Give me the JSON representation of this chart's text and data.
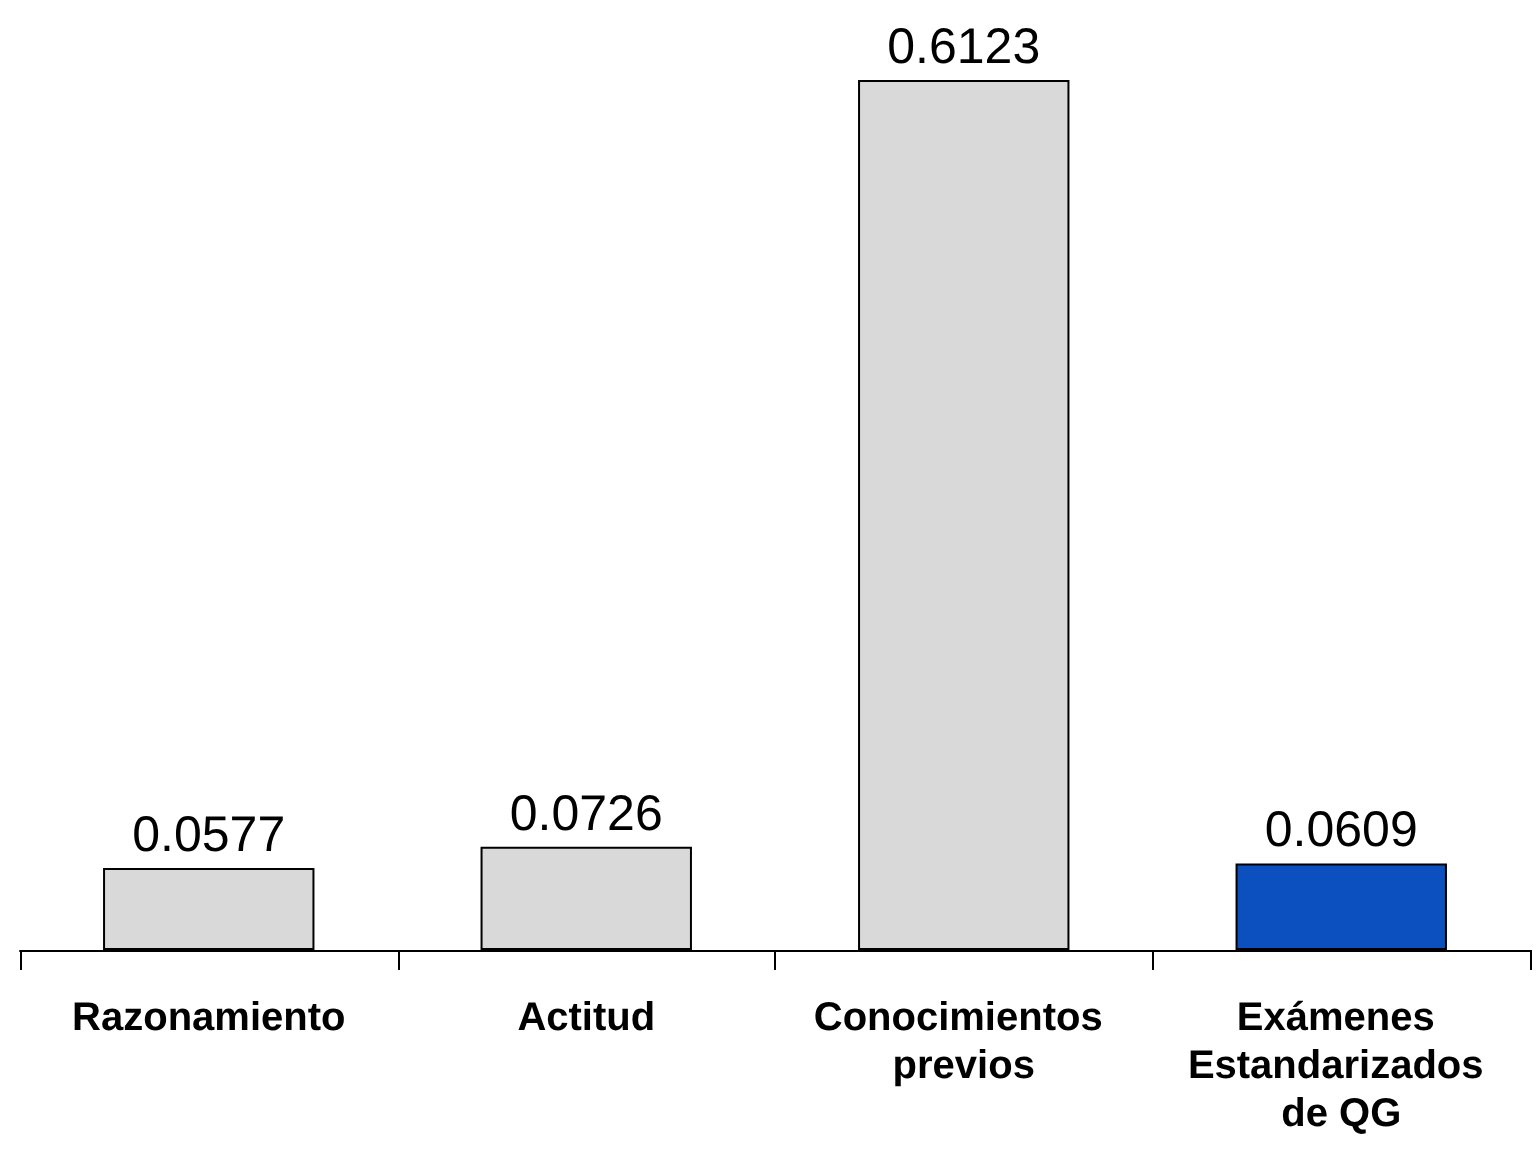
{
  "chart_data": {
    "type": "bar",
    "categories": [
      "Razonamiento",
      "Actitud",
      "Conocimientos previos",
      "Exámenes Estandarizados de QG"
    ],
    "values": [
      0.0577,
      0.0726,
      0.6123,
      0.0609
    ],
    "colors": [
      "#d9d9d9",
      "#d9d9d9",
      "#d9d9d9",
      "#0c4fbe"
    ],
    "tick_labels": "x",
    "data_labels": true
  }
}
